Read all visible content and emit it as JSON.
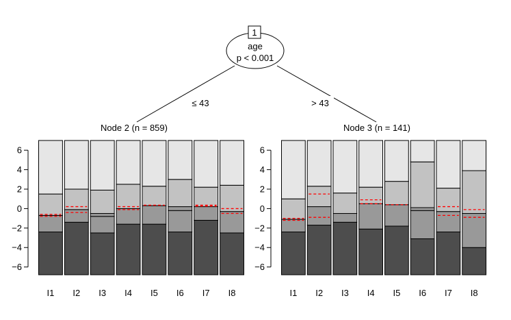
{
  "colors": {
    "band_fills": [
      "#4d4d4d",
      "#999999",
      "#c2c2c2",
      "#e6e6e6"
    ],
    "threshold_line": "#ff0000",
    "outline": "#000000"
  },
  "tree": {
    "root": {
      "id_label": "1",
      "variable": "age",
      "pvalue": "p < 0.001"
    },
    "edges": [
      {
        "label": "≤ 43"
      },
      {
        "label": "> 43"
      }
    ]
  },
  "chart_data": [
    {
      "type": "stacked-bar",
      "title": "Node 2 (n = 859)",
      "categories": [
        "I1",
        "I2",
        "I3",
        "I4",
        "I5",
        "I6",
        "I7",
        "I8"
      ],
      "ylim": [
        -6.8,
        7.0
      ],
      "yticks": [
        -6,
        -4,
        -2,
        0,
        2,
        4,
        6
      ],
      "y_tick_labels": [
        "−6",
        "−4",
        "−2",
        "0",
        "2",
        "4",
        "6"
      ],
      "band_boundaries": [
        [
          -2.4,
          -0.7,
          1.5
        ],
        [
          -1.4,
          -0.1,
          2.0
        ],
        [
          -2.5,
          -0.8,
          -0.5,
          1.9
        ],
        [
          -1.6,
          0.0,
          2.5
        ],
        [
          -1.6,
          0.3,
          2.3
        ],
        [
          -2.4,
          -0.2,
          0.2,
          3.0
        ],
        [
          -1.2,
          0.2,
          2.2
        ],
        [
          -2.5,
          -0.3,
          2.4
        ]
      ],
      "red_dashed": [
        [
          -0.6,
          -0.8
        ],
        [
          0.2,
          -0.4
        ],
        [],
        [
          0.2,
          -0.1
        ],
        [
          0.35
        ],
        [],
        [
          0.25,
          0.35
        ],
        [
          0.0,
          -0.5
        ]
      ]
    },
    {
      "type": "stacked-bar",
      "title": "Node 3 (n = 141)",
      "categories": [
        "I1",
        "I2",
        "I3",
        "I4",
        "I5",
        "I6",
        "I7",
        "I8"
      ],
      "ylim": [
        -6.8,
        7.0
      ],
      "yticks": [
        -6,
        -4,
        -2,
        0,
        2,
        4,
        6
      ],
      "y_tick_labels": [
        "−6",
        "−4",
        "−2",
        "0",
        "2",
        "4",
        "6"
      ],
      "band_boundaries": [
        [
          -2.4,
          -1.1,
          1.0
        ],
        [
          -1.7,
          0.2,
          2.3
        ],
        [
          -1.4,
          -0.5,
          1.6
        ],
        [
          -2.1,
          0.5,
          2.2
        ],
        [
          -1.8,
          0.4,
          2.8
        ],
        [
          -3.1,
          -0.2,
          0.1,
          4.8
        ],
        [
          -2.4,
          -0.3,
          2.1
        ],
        [
          -4.0,
          -0.5,
          3.9
        ]
      ],
      "red_dashed": [
        [
          -1.0,
          -1.2
        ],
        [
          1.5,
          -0.9
        ],
        [],
        [
          0.9,
          0.5
        ],
        [
          0.4
        ],
        [],
        [
          0.2,
          -0.7
        ],
        [
          -0.1,
          -0.9
        ]
      ]
    }
  ]
}
